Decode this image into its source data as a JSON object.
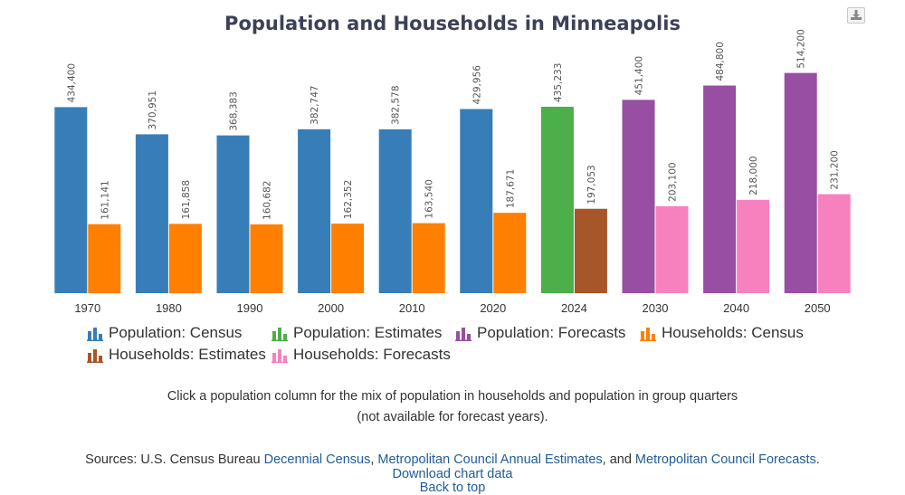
{
  "toolbar": {
    "export_icon": "download-icon"
  },
  "chart_data": {
    "type": "bar",
    "title": "Population and Households in Minneapolis",
    "categories": [
      "1970",
      "1980",
      "1990",
      "2000",
      "2010",
      "2020",
      "2024",
      "2030",
      "2040",
      "2050"
    ],
    "series": [
      {
        "name": "Population: Census",
        "color": "#377eb8",
        "values": [
          434400,
          370951,
          368383,
          382747,
          382578,
          429956,
          null,
          null,
          null,
          null
        ],
        "labels": [
          "434,400",
          "370,951",
          "368,383",
          "382,747",
          "382,578",
          "429,956",
          null,
          null,
          null,
          null
        ]
      },
      {
        "name": "Population: Estimates",
        "color": "#4daf4a",
        "values": [
          null,
          null,
          null,
          null,
          null,
          null,
          435233,
          null,
          null,
          null
        ],
        "labels": [
          null,
          null,
          null,
          null,
          null,
          null,
          "435,233",
          null,
          null,
          null
        ]
      },
      {
        "name": "Population: Forecasts",
        "color": "#984ea3",
        "values": [
          null,
          null,
          null,
          null,
          null,
          null,
          null,
          451400,
          484800,
          514200
        ],
        "labels": [
          null,
          null,
          null,
          null,
          null,
          null,
          null,
          "451,400",
          "484,800",
          "514,200"
        ]
      },
      {
        "name": "Households: Census",
        "color": "#ff7f00",
        "values": [
          161141,
          161858,
          160682,
          162352,
          163540,
          187671,
          null,
          null,
          null,
          null
        ],
        "labels": [
          "161,141",
          "161,858",
          "160,682",
          "162,352",
          "163,540",
          "187,671",
          null,
          null,
          null,
          null
        ]
      },
      {
        "name": "Households: Estimates",
        "color": "#a65628",
        "values": [
          null,
          null,
          null,
          null,
          null,
          null,
          197053,
          null,
          null,
          null
        ],
        "labels": [
          null,
          null,
          null,
          null,
          null,
          null,
          "197,053",
          null,
          null,
          null
        ]
      },
      {
        "name": "Households: Forecasts",
        "color": "#f781bf",
        "values": [
          null,
          null,
          null,
          null,
          null,
          null,
          null,
          203100,
          218000,
          231200
        ],
        "labels": [
          null,
          null,
          null,
          null,
          null,
          null,
          null,
          "203,100",
          "218,000",
          "231,200"
        ]
      }
    ],
    "ylim": [
      0,
      600000
    ],
    "grid": false,
    "legend_position": "bottom"
  },
  "note": {
    "line1": "Click a population column for the mix of population in households and population in group quarters",
    "line2": "(not available for forecast years)."
  },
  "sources": {
    "prefix": "Sources: U.S. Census Bureau ",
    "link1": "Decennial Census",
    "sep1": ", ",
    "link2": "Metropolitan Council Annual Estimates",
    "sep2": ", and ",
    "link3": "Metropolitan Council Forecasts",
    "suffix": "."
  },
  "links": {
    "download": "Download chart data",
    "back_to_top": "Back to top"
  }
}
